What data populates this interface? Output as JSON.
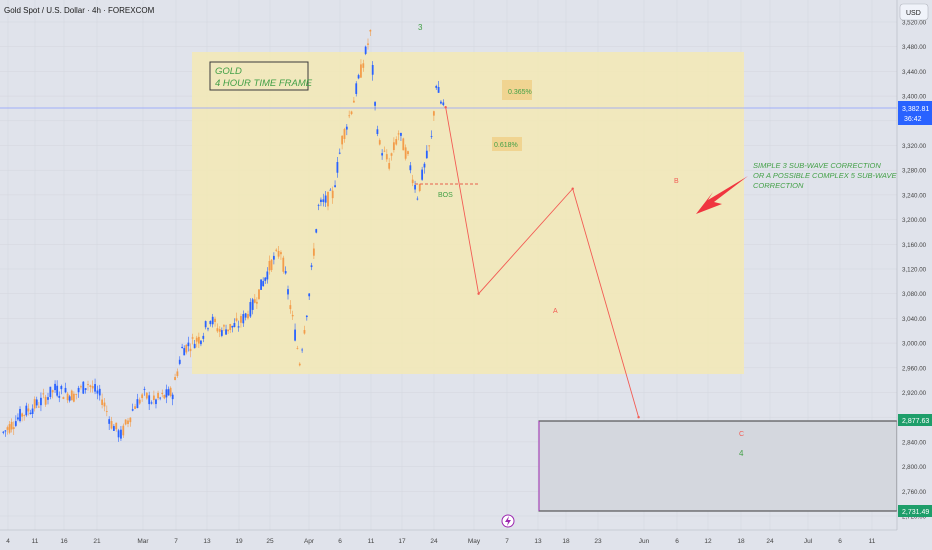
{
  "header": {
    "symbol_title": "Gold Spot / U.S. Dollar · 4h · FOREXCOM",
    "currency": "USD"
  },
  "price_badges": {
    "current_price": "3,382.81",
    "countdown": "36:42",
    "upper_zone": "2,877.63",
    "lower_zone": "2,731.49"
  },
  "annotations": {
    "title_box_line1": "GOLD",
    "title_box_line2": "4 HOUR TIME FRAME",
    "wave3": "3",
    "wave4": "4",
    "waveA": "A",
    "waveB": "B",
    "waveC": "C",
    "fib_upper": "0.365%",
    "fib_lower": "0.618%",
    "bos": "BOS",
    "correction_line1": "SIMPLE 3 SUB-WAVE CORRECTION",
    "correction_line2": "OR A POSSIBLE COMPLEX 5 SUB-WAVE",
    "correction_line3": "CORRECTION"
  },
  "colors": {
    "background": "#e0e3eb",
    "zone": "#f3e9b5",
    "bull": "#2962ff",
    "bear": "#f39c4a",
    "projection": "#f25c54",
    "note_green": "#43a047",
    "current_line": "#8c9eff",
    "target_box": "#9c27b0"
  },
  "chart_data": {
    "type": "line",
    "title": "Gold Spot / U.S. Dollar · 4h · FOREXCOM",
    "y_axis": {
      "range": [
        2700,
        3540
      ],
      "ticks": [
        "3,520.00",
        "3,480.00",
        "3,440.00",
        "3,400.00",
        "3,360.00",
        "3,320.00",
        "3,280.00",
        "3,240.00",
        "3,200.00",
        "3,160.00",
        "3,120.00",
        "3,080.00",
        "3,040.00",
        "3,000.00",
        "2,960.00",
        "2,920.00",
        "2,880.00",
        "2,840.00",
        "2,800.00",
        "2,760.00",
        "2,720.00"
      ]
    },
    "x_axis": {
      "ticks": [
        "4",
        "11",
        "16",
        "21",
        "Mar",
        "7",
        "13",
        "19",
        "25",
        "Apr",
        "6",
        "11",
        "17",
        "24",
        "May",
        "7",
        "13",
        "18",
        "23",
        "Jun",
        "6",
        "12",
        "18",
        "24",
        "Jul",
        "6",
        "11"
      ]
    },
    "series": [
      {
        "values": [
          [
            "Feb 3",
            2855
          ],
          [
            "Feb 7",
            2885
          ],
          [
            "Feb 11",
            2905
          ],
          [
            "Feb 14",
            2925
          ],
          [
            "Feb 18",
            2915
          ],
          [
            "Feb 21",
            2935
          ],
          [
            "Feb 24",
            2910
          ],
          [
            "Feb 26",
            2870
          ],
          [
            "Feb 28",
            2850
          ],
          [
            "Mar 3",
            2900
          ],
          [
            "Mar 5",
            2915
          ],
          [
            "Mar 7",
            2905
          ],
          [
            "Mar 11",
            2920
          ],
          [
            "Mar 13",
            2990
          ],
          [
            "Mar 17",
            3010
          ],
          [
            "Mar 19",
            3040
          ],
          [
            "Mar 21",
            3020
          ],
          [
            "Mar 25",
            3030
          ],
          [
            "Mar 28",
            3060
          ],
          [
            "Apr 1",
            3130
          ],
          [
            "Apr 3",
            3150
          ],
          [
            "Apr 5",
            3060
          ],
          [
            "Apr 7",
            2970
          ],
          [
            "Apr 9",
            3080
          ],
          [
            "Apr 11",
            3220
          ],
          [
            "Apr 14",
            3240
          ],
          [
            "Apr 16",
            3330
          ],
          [
            "Apr 18",
            3380
          ],
          [
            "Apr 21",
            3470
          ],
          [
            "Apr 22",
            3500
          ],
          [
            "Apr 23",
            3380
          ],
          [
            "Apr 24",
            3320
          ],
          [
            "Apr 26",
            3290
          ],
          [
            "Apr 28",
            3340
          ],
          [
            "Apr 30",
            3300
          ],
          [
            "May 2",
            3240
          ],
          [
            "May 5",
            3330
          ],
          [
            "May 6",
            3420
          ],
          [
            "May 7",
            3390
          ],
          [
            "May 8",
            3382
          ]
        ]
      }
    ],
    "projection": [
      {
        "label": "",
        "date": "May 8",
        "price": 3382
      },
      {
        "label": "A",
        "date": "May 15",
        "price": 3080
      },
      {
        "label": "B",
        "date": "Jun 4",
        "price": 3250
      },
      {
        "label": "C",
        "date": "Jun 18",
        "price": 2880
      }
    ],
    "zones": [
      {
        "name": "4 HOUR TIME FRAME",
        "from": "Mar 12",
        "to": "Jun 19",
        "low": 2960,
        "high": 3480
      },
      {
        "name": "target",
        "from": "May 16",
        "to": "Jul 15",
        "low": 2731.49,
        "high": 2877.63
      }
    ],
    "levels": {
      "current": 3382.81,
      "bos": 3262
    }
  }
}
